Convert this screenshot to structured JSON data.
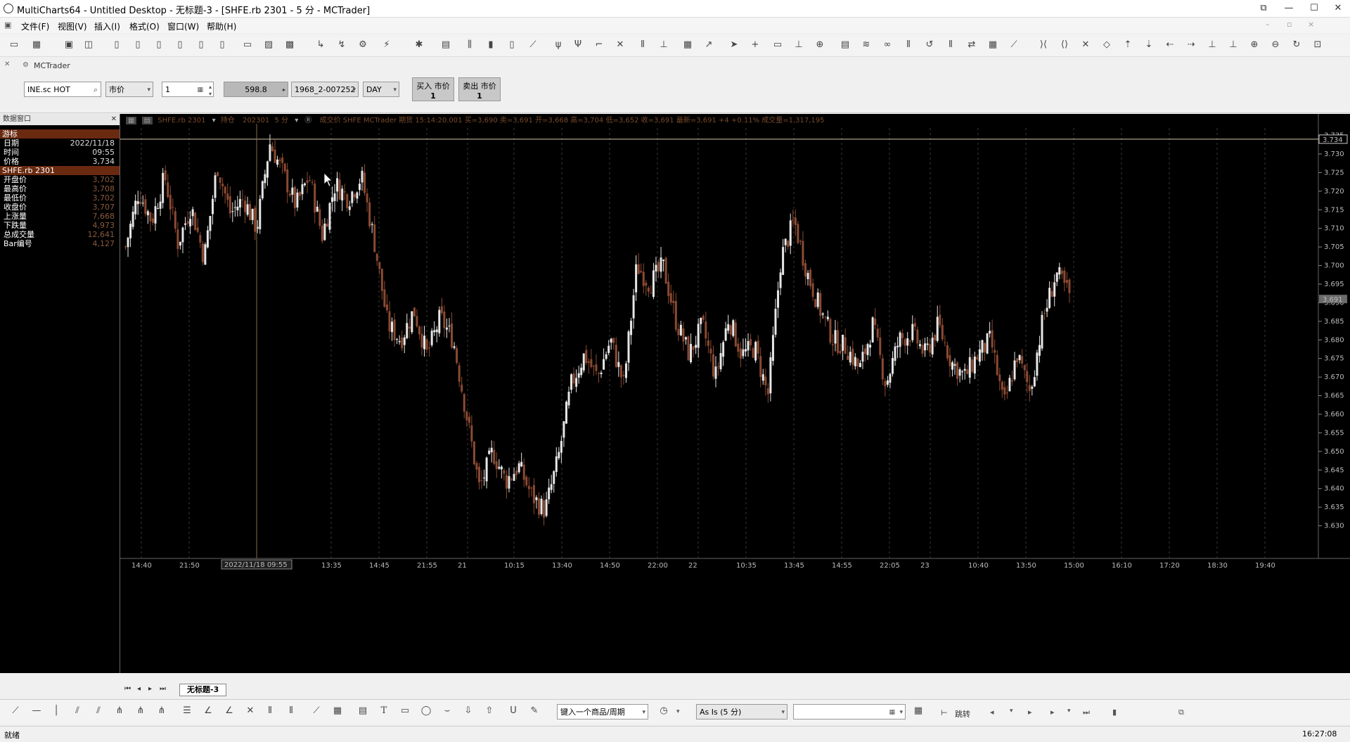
{
  "window": {
    "title": "MultiCharts64 - Untitled Desktop - 无标题-3 - [SHFE.rb 2301 - 5 分 - MCTrader]"
  },
  "menu": [
    "文件(F)",
    "视图(V)",
    "插入(I)",
    "格式(O)",
    "窗口(W)",
    "帮助(H)"
  ],
  "trader": {
    "tab_label": "MCTrader",
    "symbol": "INE.sc HOT",
    "order_type": "市价",
    "quantity": "1",
    "price": "598.8",
    "account": "1968_2-007252",
    "tif": "DAY",
    "buy_label": "买入 市价",
    "buy_qty": "1",
    "sell_label": "卖出 市价",
    "sell_qty": "1"
  },
  "data_window": {
    "title": "数据窗口",
    "section1": "游标",
    "rows1": [
      {
        "k": "日期",
        "v": "2022/11/18"
      },
      {
        "k": "时间",
        "v": "09:55"
      },
      {
        "k": "价格",
        "v": "3,734"
      }
    ],
    "section2": "SHFE.rb 2301",
    "rows2": [
      {
        "k": "开盘价",
        "v": "3,702"
      },
      {
        "k": "最高价",
        "v": "3,708"
      },
      {
        "k": "最低价",
        "v": "3,702"
      },
      {
        "k": "收盘价",
        "v": "3,707"
      },
      {
        "k": "上涨量",
        "v": "7,668"
      },
      {
        "k": "下跌量",
        "v": "4,973"
      },
      {
        "k": "总成交量",
        "v": "12,641"
      },
      {
        "k": "Bar编号",
        "v": "4,127"
      }
    ]
  },
  "chart_header": {
    "symbol": "SHFE.rb 2301",
    "mode": "持仓",
    "contract": "202301",
    "interval": "5 分",
    "info": "成交价  SHFE  MCTrader  期货  15:14:20.001  买=3,690  卖=3,691  开=3,668  高=3,704  低=3,652  收=3,691  最新=3,691  +4  +0.11%  成交量=1,317,195"
  },
  "chart_data": {
    "type": "candlestick",
    "y_axis": {
      "min": 3625,
      "max": 3737,
      "ticks": [
        "3.735",
        "3.730",
        "3.725",
        "3.720",
        "3.715",
        "3.710",
        "3.705",
        "3.700",
        "3.695",
        "3.690",
        "3.685",
        "3.680",
        "3.675",
        "3.670",
        "3.665",
        "3.660",
        "3.655",
        "3.650",
        "3.645",
        "3.640",
        "3.635",
        "3.630"
      ],
      "tick_values": [
        3735,
        3730,
        3725,
        3720,
        3715,
        3710,
        3705,
        3700,
        3695,
        3690,
        3685,
        3680,
        3675,
        3670,
        3665,
        3660,
        3655,
        3650,
        3645,
        3640,
        3635,
        3630
      ]
    },
    "x_axis": {
      "labels": [
        "14:40",
        "21:50",
        "13:35",
        "14:45",
        "21:55",
        "21",
        "10:15",
        "13:40",
        "14:50",
        "22:00",
        "22",
        "10:35",
        "13:45",
        "14:55",
        "22:05",
        "23",
        "10:40",
        "13:50",
        "15:00",
        "16:10",
        "17:20",
        "18:30",
        "19:40"
      ],
      "cursor_label": "2022/11/18 09:55"
    },
    "cursor_price": "3.734",
    "last_price": "3.691",
    "price_path": [
      3705,
      3720,
      3712,
      3724,
      3706,
      3716,
      3702,
      3727,
      3714,
      3718,
      3710,
      3733,
      3725,
      3716,
      3724,
      3708,
      3722,
      3718,
      3724,
      3706,
      3684,
      3680,
      3688,
      3676,
      3686,
      3680,
      3660,
      3640,
      3650,
      3642,
      3646,
      3638,
      3634,
      3648,
      3668,
      3676,
      3670,
      3680,
      3668,
      3700,
      3695,
      3700,
      3685,
      3676,
      3684,
      3670,
      3686,
      3676,
      3678,
      3665,
      3702,
      3712,
      3698,
      3688,
      3680,
      3678,
      3672,
      3684,
      3668,
      3680,
      3682,
      3676,
      3684,
      3674,
      3670,
      3676,
      3680,
      3662,
      3676,
      3666,
      3686,
      3698,
      3692
    ],
    "series": [
      {
        "values": []
      }
    ]
  },
  "bottom_tabs": {
    "sheet": "无标题-3"
  },
  "drawbar": {
    "symbol_input_placeholder": "键入一个商品/周期",
    "interval": "As Is (5 分)",
    "jump_label": "跳转"
  },
  "status": {
    "left": "就绪",
    "time": "16:27:08"
  }
}
